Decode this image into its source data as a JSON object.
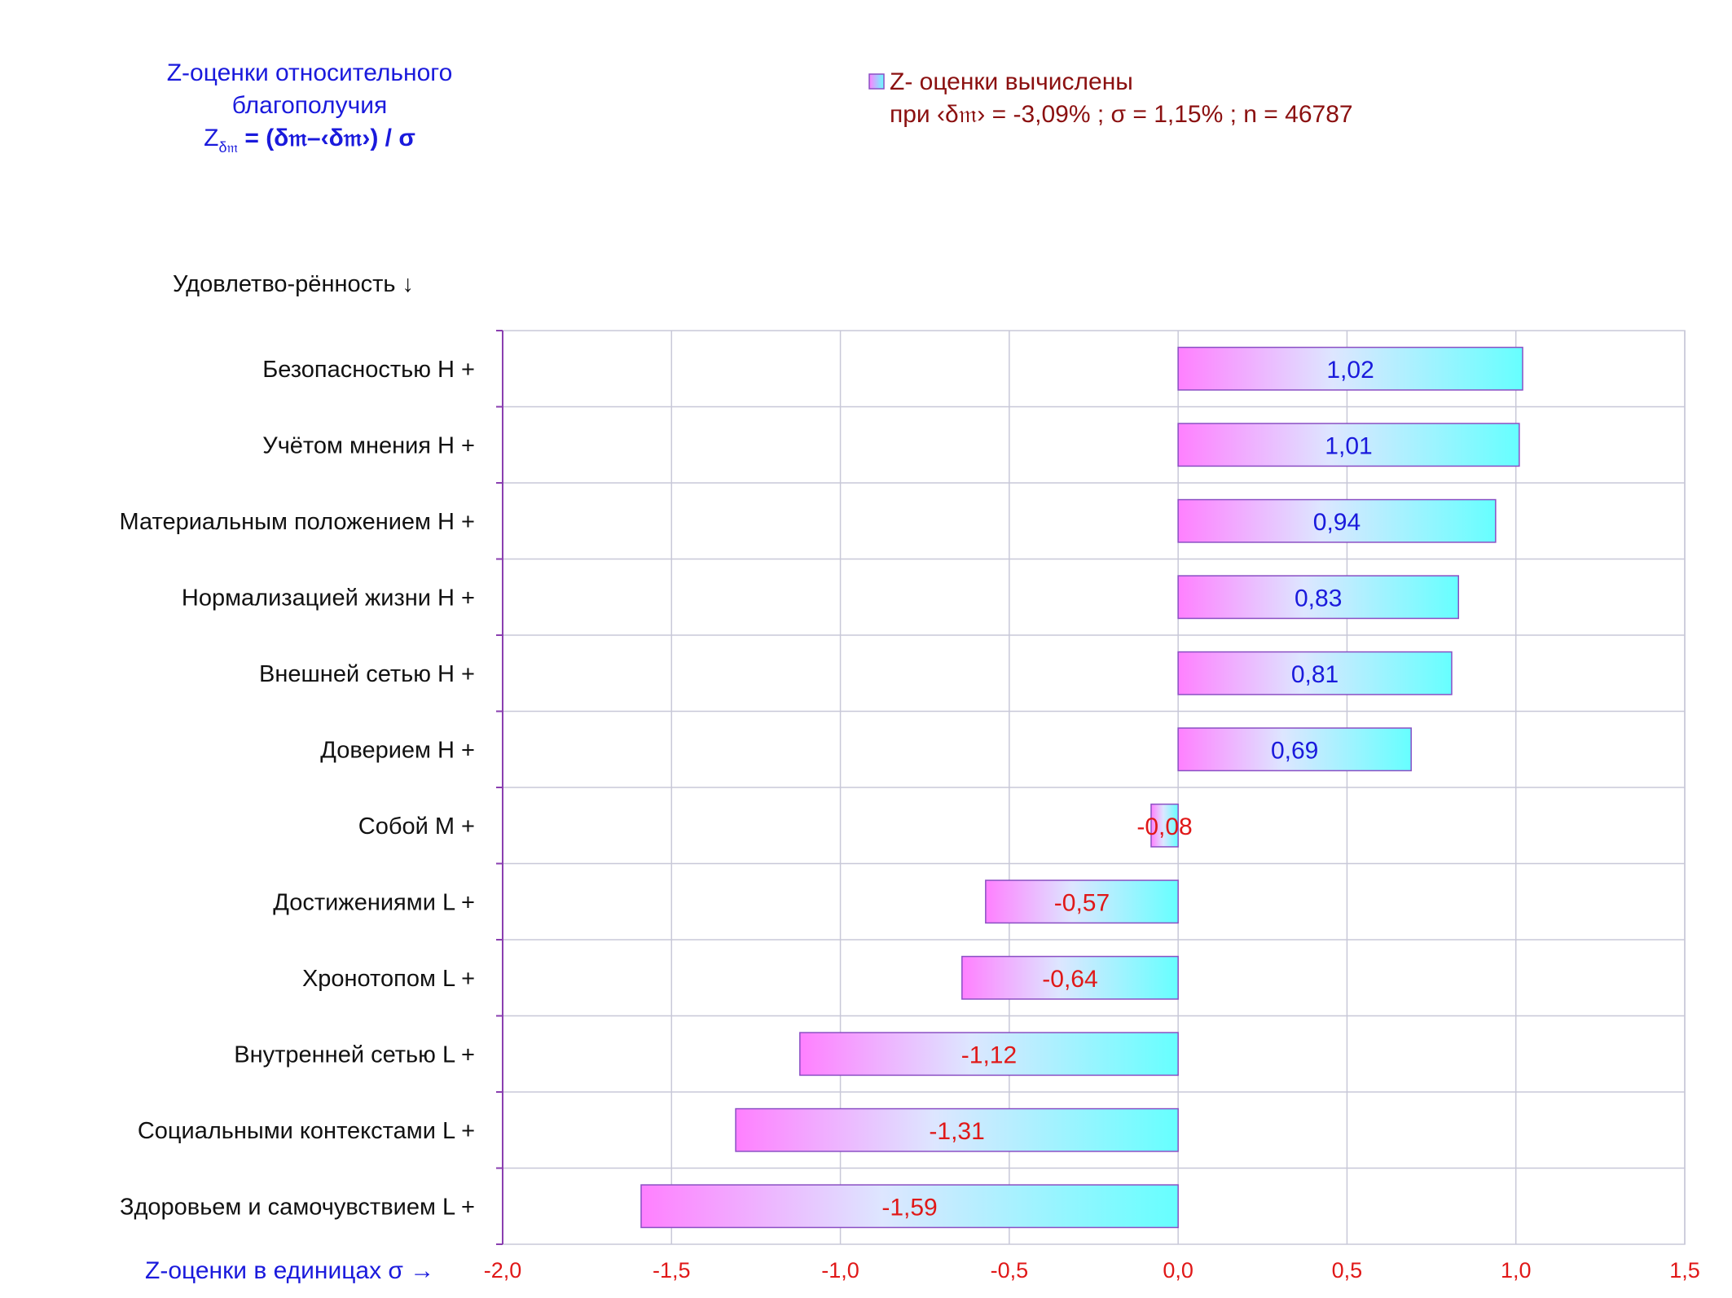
{
  "title": {
    "line1": "Z-оценки  относительного",
    "line2": "благополучия",
    "formula_z": "Z",
    "formula_sub": "δ𝔪",
    "formula_rest": " = (δ𝔪–‹δ𝔪›)  / σ"
  },
  "legend": {
    "label": "Z- оценки вычислены",
    "stats": "при ‹δ𝔪› = -3,09% ; σ = 1,15% ; n = 46787"
  },
  "colors": {
    "bar_left": "#ff80ff",
    "bar_right": "#66ffff",
    "bar_border": "#8a4fc4",
    "grid": "#c8c8d8",
    "axis": "#8a3fb0",
    "positive_label": "#1a1adc",
    "negative_label": "#e01818"
  },
  "chart_data": {
    "type": "bar",
    "orientation": "horizontal",
    "y_axis_title": "Удовлетво-рённость ↓",
    "x_axis_title": "Z-оценки в единицах σ →",
    "xlim": [
      -2.0,
      1.5
    ],
    "x_ticks": [
      -2.0,
      -1.5,
      -1.0,
      -0.5,
      0.0,
      0.5,
      1.0,
      1.5
    ],
    "x_tick_labels": [
      "-2,0",
      "-1,5",
      "-1,0",
      "-0,5",
      "0,0",
      "0,5",
      "1,0",
      "1,5"
    ],
    "grid": true,
    "legend_position": "top-right",
    "categories": [
      "Безопасностью  H +",
      "Учётом мнения  H +",
      "Материальным положением  H +",
      "Нормализацией жизни  H +",
      "Внешней сетью  H +",
      "Доверием  H +",
      "Собой  M +",
      "Достижениями  L +",
      "Хронотопом  L +",
      "Внутренней сетью  L +",
      "Социальными контекстами  L +",
      "Здоровьем и самочувствием  L +"
    ],
    "values": [
      1.02,
      1.01,
      0.94,
      0.83,
      0.81,
      0.69,
      -0.08,
      -0.57,
      -0.64,
      -1.12,
      -1.31,
      -1.59
    ],
    "value_labels": [
      "1,02",
      "1,01",
      "0,94",
      "0,83",
      "0,81",
      "0,69",
      "-0,08",
      "-0,57",
      "-0,64",
      "-1,12",
      "-1,31",
      "-1,59"
    ]
  }
}
